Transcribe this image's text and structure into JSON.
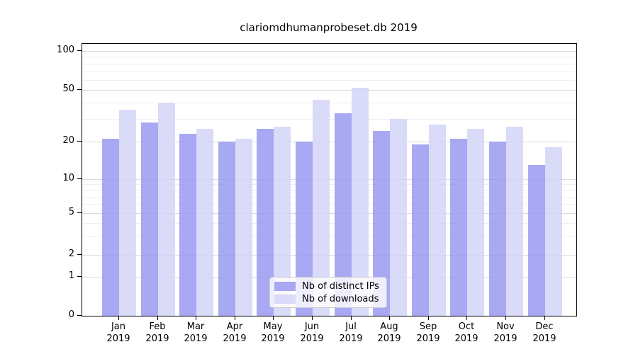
{
  "chart_data": {
    "type": "bar",
    "title": "clariomdhumanprobeset.db 2019",
    "x_tick_months": [
      "Jan",
      "Feb",
      "Mar",
      "Apr",
      "May",
      "Jun",
      "Jul",
      "Aug",
      "Sep",
      "Oct",
      "Nov",
      "Dec"
    ],
    "x_tick_year": "2019",
    "categories": [
      "Jan 2019",
      "Feb 2019",
      "Mar 2019",
      "Apr 2019",
      "May 2019",
      "Jun 2019",
      "Jul 2019",
      "Aug 2019",
      "Sep 2019",
      "Oct 2019",
      "Nov 2019",
      "Dec 2019"
    ],
    "series": [
      {
        "name": "Nb of distinct IPs",
        "color": "#a8a8f3",
        "fill_rgba": "rgba(146,146,240,0.8)",
        "values": [
          21,
          28,
          23,
          20,
          25,
          20,
          33,
          24,
          19,
          21,
          20,
          13
        ]
      },
      {
        "name": "Nb of downloads",
        "color": "#dadaf9",
        "fill_rgba": "rgba(209,209,247,0.8)",
        "values": [
          35,
          40,
          25,
          21,
          26,
          42,
          52,
          30,
          27,
          25,
          26,
          18
        ]
      }
    ],
    "y_axis": {
      "scale": "symlog",
      "ticks": [
        0,
        1,
        2,
        5,
        10,
        20,
        50,
        100
      ],
      "minor_ticks": [
        3,
        4,
        6,
        7,
        8,
        9,
        30,
        40,
        60,
        70,
        80,
        90
      ],
      "ylim": [
        0,
        113
      ]
    },
    "grid": "on",
    "legend_position": "lower center",
    "colors": {
      "major_grid": "#dcdcdc",
      "minor_grid": "#efefef",
      "axis": "#000000",
      "background": "#ffffff"
    }
  }
}
